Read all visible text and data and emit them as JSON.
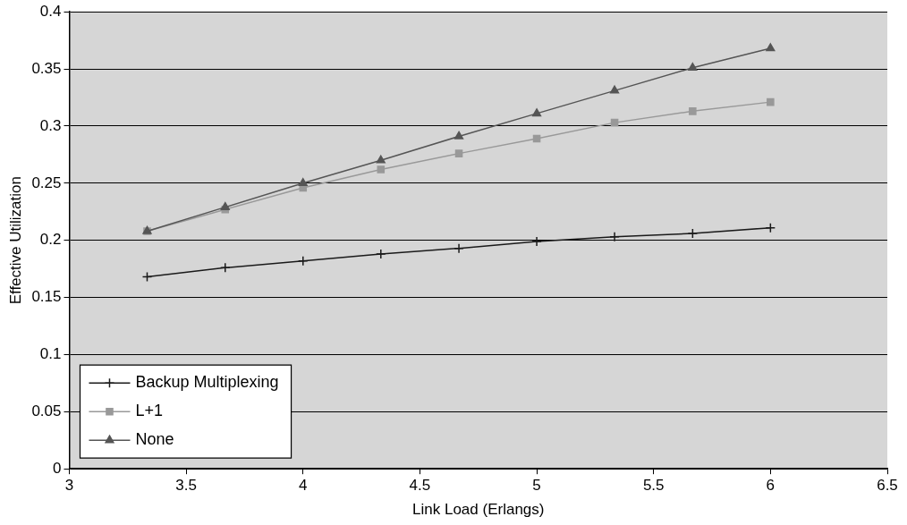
{
  "chart_data": {
    "type": "line",
    "xlabel": "Link Load (Erlangs)",
    "ylabel": "Effective Utilization",
    "xlim": [
      3,
      6.5
    ],
    "xticks": [
      3,
      3.5,
      4,
      4.5,
      5,
      5.5,
      6,
      6.5
    ],
    "ylim": [
      0,
      0.4
    ],
    "yticks": [
      0,
      0.05,
      0.1,
      0.15,
      0.2,
      0.25,
      0.3,
      0.35,
      0.4
    ],
    "grid": "y",
    "legend": "bottom left",
    "x": [
      3.333,
      3.667,
      4,
      4.333,
      4.667,
      5,
      5.333,
      5.667,
      6
    ],
    "series": [
      {
        "name": "Backup Multiplexing",
        "color": "#1a1a1a",
        "marker": "cross",
        "values": [
          0.168,
          0.176,
          0.182,
          0.188,
          0.193,
          0.199,
          0.203,
          0.206,
          0.211
        ]
      },
      {
        "name": "L+1",
        "color": "#999999",
        "marker": "square",
        "values": [
          0.208,
          0.227,
          0.246,
          0.262,
          0.276,
          0.289,
          0.303,
          0.313,
          0.321
        ]
      },
      {
        "name": "None",
        "color": "#555555",
        "marker": "triangle",
        "values": [
          0.208,
          0.229,
          0.25,
          0.27,
          0.291,
          0.311,
          0.331,
          0.351,
          0.368
        ]
      }
    ]
  }
}
